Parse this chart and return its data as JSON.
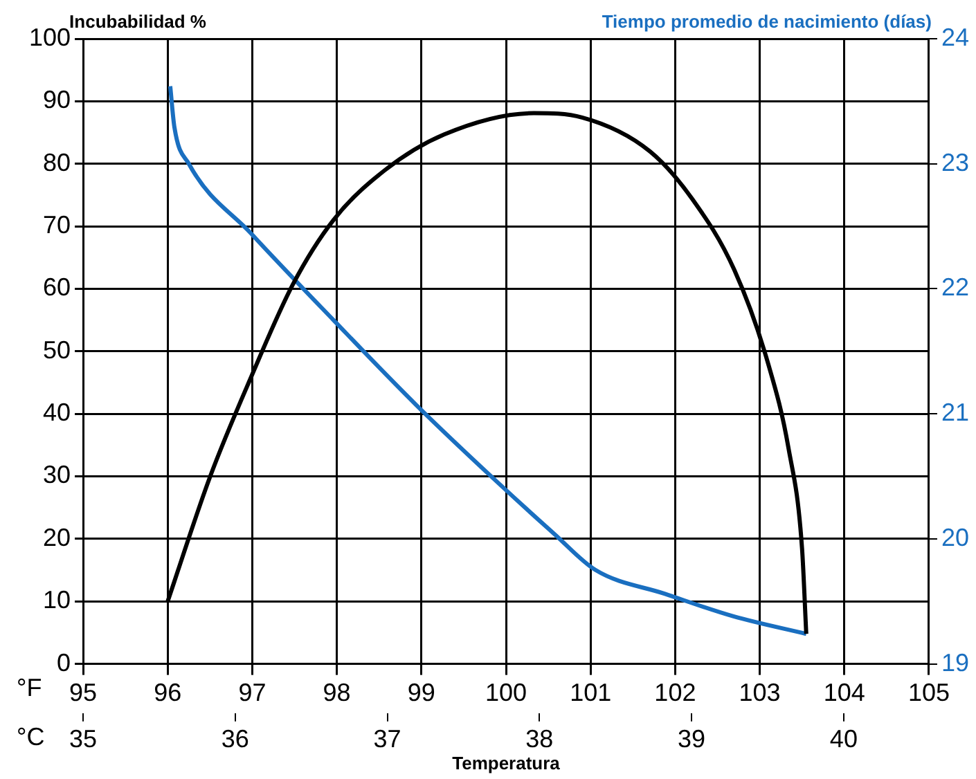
{
  "chart_data": {
    "type": "line",
    "xlabel": "Temperatura",
    "ylabel": "Incubabilidad %",
    "y2label": "Tiempo promedio de nacimiento (días)",
    "annotations": [
      "°F",
      "°C"
    ],
    "series": [
      {
        "color": "#000000",
        "x": [
          96,
          96.5,
          96.99,
          97.48,
          97.96,
          98.57,
          99.27,
          100.33,
          100.9,
          101.7,
          102.2,
          102.7,
          103.1,
          103.34,
          103.5,
          103.55
        ],
        "values": [
          10,
          29.9,
          46,
          60.7,
          71,
          79,
          84.7,
          88.1,
          87.4,
          82,
          74.4,
          63,
          48,
          34.5,
          18.5,
          4.8
        ]
      },
      {
        "color": "#1a6fc0",
        "axis": "y2",
        "x": [
          96.03,
          96.08,
          96.25,
          96.99,
          97.96,
          98.94,
          99.92,
          100.57,
          101.06,
          101.88,
          102.69,
          103.55
        ],
        "values": [
          23.62,
          23.29,
          23.0,
          22.44,
          21.75,
          21.07,
          20.44,
          20.04,
          19.75,
          19.56,
          19.38,
          19.24
        ]
      }
    ],
    "xlim": [
      95,
      105
    ],
    "xticks": [
      95,
      96,
      97,
      98,
      99,
      100,
      101,
      102,
      103,
      104,
      105
    ],
    "x2lim": [
      35,
      40.56
    ],
    "x2ticks": [
      35,
      36,
      37,
      38,
      39,
      40
    ],
    "ylim": [
      0,
      100
    ],
    "yticks": [
      0,
      10,
      20,
      30,
      40,
      50,
      60,
      70,
      80,
      90,
      100
    ],
    "y2lim": [
      19,
      24
    ],
    "y2ticks": [
      19,
      20,
      21,
      22,
      23,
      24
    ],
    "grid": true,
    "marker": "none",
    "line_style": "solid"
  }
}
